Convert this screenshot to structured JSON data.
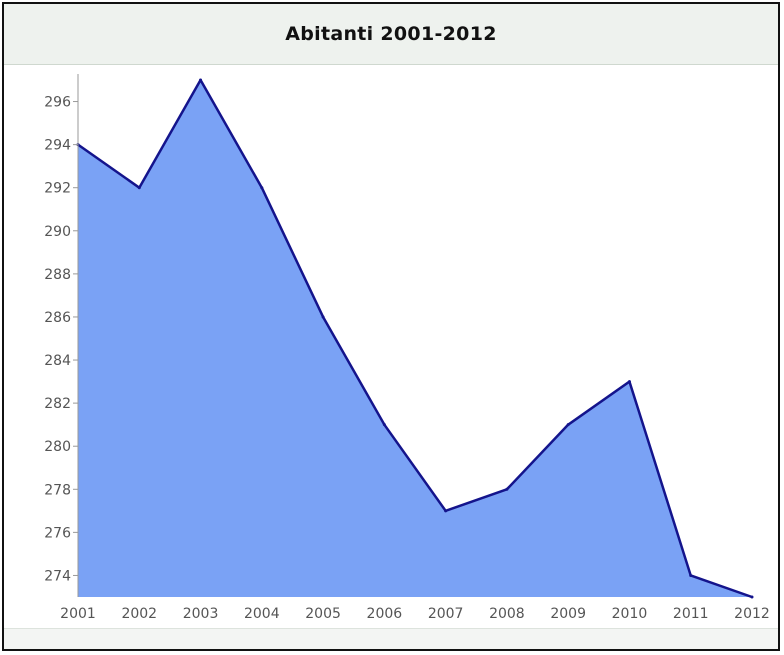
{
  "chart_data": {
    "type": "area",
    "title": "Abitanti 2001-2012",
    "xlabel": "",
    "ylabel": "",
    "x": [
      "2001",
      "2002",
      "2003",
      "2004",
      "2005",
      "2006",
      "2007",
      "2008",
      "2009",
      "2010",
      "2011",
      "2012"
    ],
    "series": [
      {
        "values": [
          294,
          292,
          297,
          292,
          286,
          281,
          277,
          278,
          281,
          283,
          274,
          273
        ]
      }
    ],
    "ylim": [
      273,
      297
    ],
    "yticks": [
      296,
      294,
      292,
      290,
      288,
      286,
      284,
      282,
      280,
      278,
      276,
      274
    ],
    "grid": false,
    "legend": "none",
    "colors": {
      "fill": "#7aa2f5",
      "line": "#14148c",
      "axis": "#999999"
    }
  }
}
